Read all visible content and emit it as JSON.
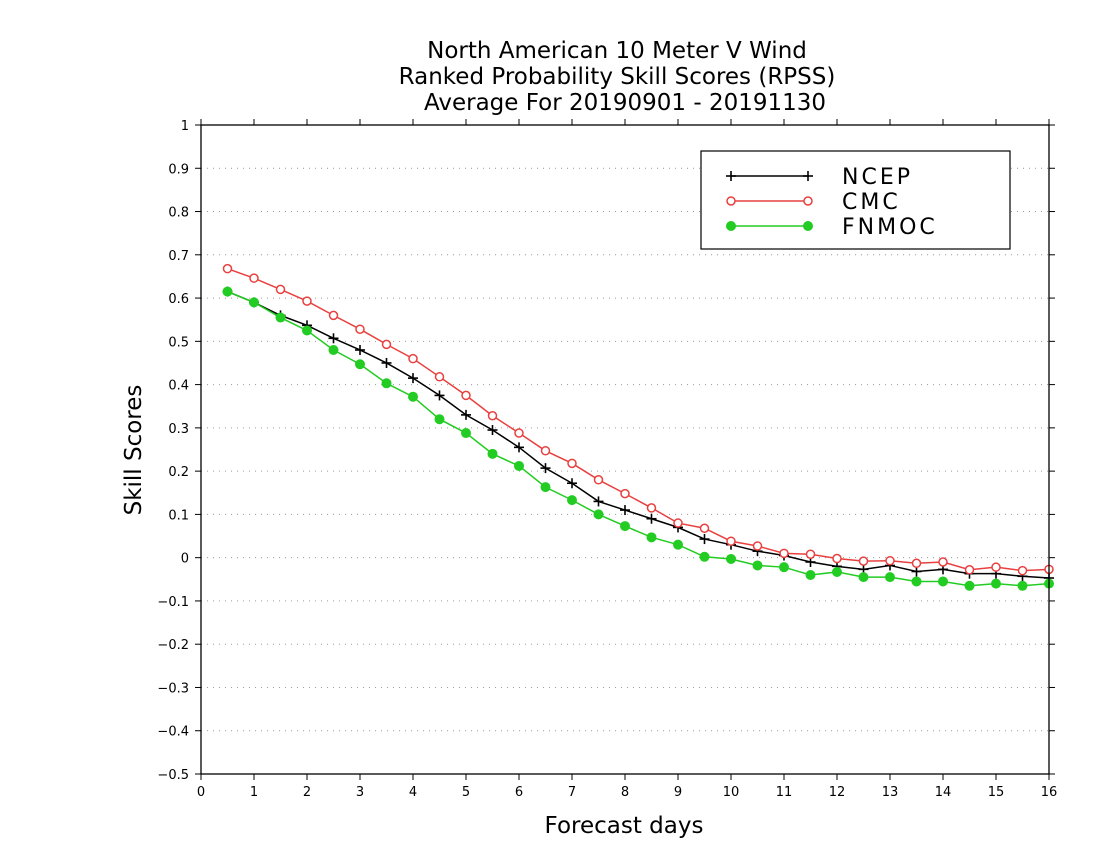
{
  "chart_data": {
    "type": "line",
    "title": "North American 10 Meter V Wind",
    "subtitle_lines": [
      "Ranked Probability Skill Scores (RPSS)",
      "Average For 20190901 - 20191130"
    ],
    "xlabel": "Forecast days",
    "ylabel": "Skill Scores",
    "xlim": [
      0,
      16
    ],
    "ylim": [
      -0.5,
      1
    ],
    "x_ticks": [
      "0",
      "1",
      "2",
      "3",
      "4",
      "5",
      "6",
      "7",
      "8",
      "9",
      "10",
      "11",
      "12",
      "13",
      "14",
      "15",
      "16"
    ],
    "y_ticks": [
      "1",
      "0.9",
      "0.8",
      "0.7",
      "0.6",
      "0.5",
      "0.4",
      "0.3",
      "0.2",
      "0.1",
      "0",
      "−0.1",
      "−0.2",
      "−0.3",
      "−0.4",
      "−0.5"
    ],
    "grid": "horizontal dotted",
    "legend_position": "top-right",
    "x": [
      0.5,
      1,
      1.5,
      2,
      2.5,
      3,
      3.5,
      4,
      4.5,
      5,
      5.5,
      6,
      6.5,
      7,
      7.5,
      8,
      8.5,
      9,
      9.5,
      10,
      10.5,
      11,
      11.5,
      12,
      12.5,
      13,
      13.5,
      14,
      14.5,
      15,
      15.5,
      16
    ],
    "series": [
      {
        "name": "NCEP",
        "color": "#000000",
        "marker": "plus",
        "values": [
          0.615,
          0.59,
          0.56,
          0.537,
          0.507,
          0.48,
          0.45,
          0.415,
          0.375,
          0.33,
          0.295,
          0.255,
          0.207,
          0.172,
          0.13,
          0.11,
          0.09,
          0.07,
          0.043,
          0.03,
          0.015,
          0.005,
          -0.01,
          -0.02,
          -0.027,
          -0.018,
          -0.032,
          -0.027,
          -0.037,
          -0.037,
          -0.043,
          -0.047
        ]
      },
      {
        "name": "CMC",
        "color": "#e8403f",
        "marker": "open-circle",
        "values": [
          0.668,
          0.646,
          0.62,
          0.593,
          0.56,
          0.528,
          0.493,
          0.46,
          0.418,
          0.375,
          0.328,
          0.288,
          0.247,
          0.218,
          0.18,
          0.148,
          0.115,
          0.08,
          0.068,
          0.038,
          0.027,
          0.01,
          0.008,
          -0.002,
          -0.008,
          -0.007,
          -0.013,
          -0.01,
          -0.028,
          -0.022,
          -0.03,
          -0.027
        ]
      },
      {
        "name": "FNMOC",
        "color": "#22cc22",
        "marker": "filled-circle",
        "values": [
          0.615,
          0.59,
          0.555,
          0.525,
          0.48,
          0.447,
          0.403,
          0.372,
          0.32,
          0.288,
          0.24,
          0.212,
          0.163,
          0.133,
          0.1,
          0.073,
          0.047,
          0.03,
          0.002,
          -0.003,
          -0.018,
          -0.022,
          -0.04,
          -0.033,
          -0.045,
          -0.045,
          -0.055,
          -0.055,
          -0.065,
          -0.06,
          -0.065,
          -0.06
        ]
      }
    ]
  }
}
